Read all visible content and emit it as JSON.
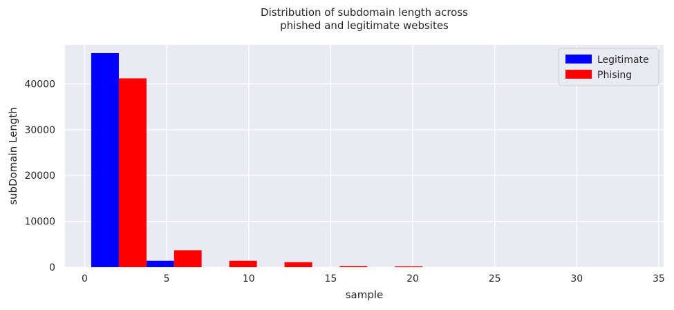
{
  "chart_data": {
    "type": "bar",
    "title_lines": [
      "Distribution of subdomain length across",
      "phished and legitimate websites"
    ],
    "xlabel": "sample",
    "ylabel": "subDomain Length",
    "xlim": [
      -1.2,
      35.3
    ],
    "ylim": [
      0,
      48500
    ],
    "xticks": [
      0,
      5,
      10,
      15,
      20,
      25,
      30,
      35
    ],
    "yticks": [
      0,
      10000,
      20000,
      30000,
      40000
    ],
    "grid": true,
    "legend_position": "top-right",
    "bin_edges": [
      0.4,
      3.77,
      7.13,
      10.5,
      13.87,
      17.23,
      20.6,
      23.97,
      27.33,
      30.7,
      34.07
    ],
    "series": [
      {
        "name": "Legitimate",
        "color": "#0000ff",
        "values": [
          46700,
          1400,
          0,
          0,
          0,
          0,
          0,
          0,
          0,
          0
        ]
      },
      {
        "name": "Phising",
        "color": "#ff0000",
        "values": [
          41200,
          3700,
          1400,
          1100,
          250,
          200,
          0,
          0,
          0,
          0
        ]
      }
    ]
  },
  "colors": {
    "plot_bg": "#eaeaf2",
    "grid": "#ffffff",
    "text": "#262626"
  }
}
